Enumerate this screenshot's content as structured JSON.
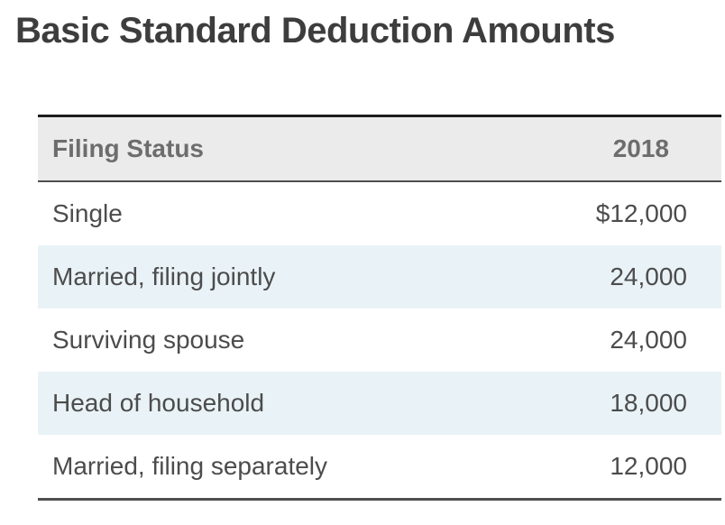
{
  "title": "Basic Standard Deduction Amounts",
  "table": {
    "columns": [
      "Filing Status",
      "2018"
    ],
    "rows": [
      {
        "filing_status": "Single",
        "amount": "$12,000"
      },
      {
        "filing_status": "Married, filing jointly",
        "amount": "24,000"
      },
      {
        "filing_status": "Surviving spouse",
        "amount": "24,000"
      },
      {
        "filing_status": "Head of household",
        "amount": "18,000"
      },
      {
        "filing_status": "Married, filing separately",
        "amount": "12,000"
      }
    ]
  },
  "chart_data": {
    "type": "table",
    "title": "Basic Standard Deduction Amounts",
    "columns": [
      "Filing Status",
      "2018"
    ],
    "rows": [
      [
        "Single",
        "$12,000"
      ],
      [
        "Married, filing jointly",
        "24,000"
      ],
      [
        "Surviving spouse",
        "24,000"
      ],
      [
        "Head of household",
        "18,000"
      ],
      [
        "Married, filing separately",
        "12,000"
      ]
    ],
    "values_2018": [
      12000,
      24000,
      24000,
      18000,
      12000
    ]
  },
  "colors": {
    "title_text": "#3d3d3d",
    "header_bg": "#ebebeb",
    "header_text": "#6d6d6d",
    "body_text": "#4c4c4c",
    "row_bg": "#ffffff",
    "row_alt_bg": "#e9f3f7",
    "top_border": "#1d1d1d",
    "rule_border": "#4f4f4f"
  }
}
